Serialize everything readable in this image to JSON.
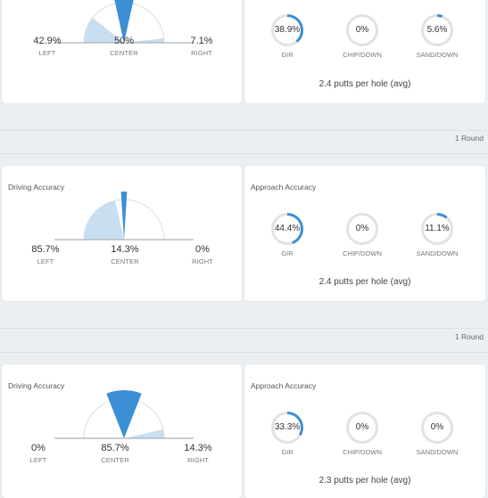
{
  "colors": {
    "accent": "#3c8fd4",
    "light_fill": "#c8dff2",
    "ring_track": "#e2e2e2",
    "line": "#aab2ba"
  },
  "rounds": [
    {
      "driving": {
        "title": "",
        "left": "42.9%",
        "center": "50%",
        "right": "7.1%",
        "left_label": "LEFT",
        "center_label": "CENTER",
        "right_label": "RIGHT",
        "left_frac": 0.429,
        "center_frac": 0.5,
        "right_frac": 0.071
      },
      "approach": {
        "title": "",
        "gir": "38.9%",
        "chip": "0%",
        "sand": "5.6%",
        "gir_label": "GIR",
        "chip_label": "CHIP/DOWN",
        "sand_label": "SAND/DOWN",
        "gir_frac": 0.389,
        "chip_frac": 0,
        "sand_frac": 0.056,
        "putts": "2.4 putts per hole (avg)"
      }
    },
    {
      "rounds_count": "1 Round",
      "driving": {
        "title": "Driving Accuracy",
        "left": "85.7%",
        "center": "14.3%",
        "right": "0%",
        "left_label": "LEFT",
        "center_label": "CENTER",
        "right_label": "RIGHT",
        "left_frac": 0.857,
        "center_frac": 0.143,
        "right_frac": 0
      },
      "approach": {
        "title": "Approach Accuracy",
        "gir": "44.4%",
        "chip": "0%",
        "sand": "11.1%",
        "gir_label": "GIR",
        "chip_label": "CHIP/DOWN",
        "sand_label": "SAND/DOWN",
        "gir_frac": 0.444,
        "chip_frac": 0,
        "sand_frac": 0.111,
        "putts": "2.4 putts per hole (avg)"
      }
    },
    {
      "rounds_count": "1 Round",
      "driving": {
        "title": "Driving Accuracy",
        "left": "0%",
        "center": "85.7%",
        "right": "14.3%",
        "left_label": "LEFT",
        "center_label": "CENTER",
        "right_label": "RIGHT",
        "left_frac": 0,
        "center_frac": 0.857,
        "right_frac": 0.143
      },
      "approach": {
        "title": "Approach Accuracy",
        "gir": "33.3%",
        "chip": "0%",
        "sand": "0%",
        "gir_label": "GIR",
        "chip_label": "CHIP/DOWN",
        "sand_label": "SAND/DOWN",
        "gir_frac": 0.333,
        "chip_frac": 0,
        "sand_frac": 0,
        "putts": "2.3 putts per hole (avg)"
      }
    }
  ]
}
